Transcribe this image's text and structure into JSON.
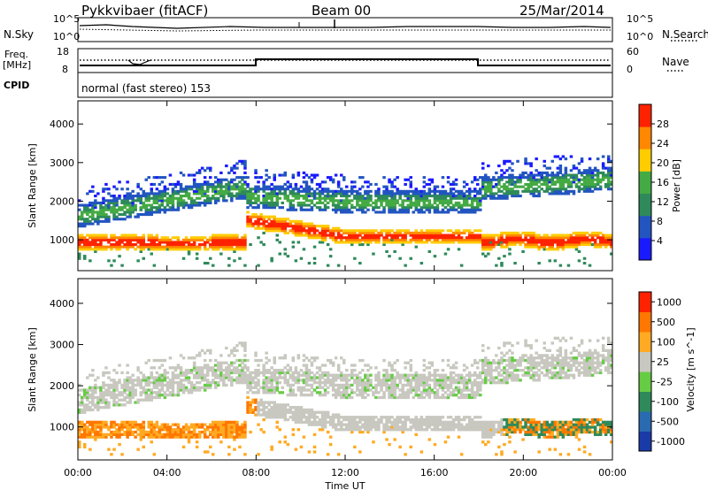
{
  "header": {
    "station": "Pykkvibaer (fitACF)",
    "beam": "Beam 00",
    "date": "25/Mar/2014"
  },
  "top_panels": {
    "nsky_label": "N.Sky",
    "nsky_ticks": [
      "10^5",
      "10^0"
    ],
    "nsearch_label": "N.Search",
    "nsearch_ticks": [
      "10^5",
      "10^0"
    ],
    "freq_label_line1": "Freq.",
    "freq_label_line2": "[MHz]",
    "freq_ticks": [
      "18",
      "8"
    ],
    "nave_label": "Nave",
    "nave_ticks": [
      "60",
      "0"
    ],
    "cpid_label": "CPID",
    "cpid_text": "normal (fast stereo) 153"
  },
  "chart_data": [
    {
      "type": "heatmap",
      "name": "power",
      "ylabel": "Slant Range [km]",
      "yticks": [
        "1000",
        "2000",
        "3000",
        "4000"
      ],
      "ylim": [
        200,
        4600
      ],
      "xlim": [
        0,
        24
      ],
      "colorbar_label": "Power [dB]",
      "colorbar_ticks": [
        "4",
        "8",
        "12",
        "16",
        "20",
        "24",
        "28"
      ],
      "colorbar_colors": [
        "#1a1aff",
        "#2255c0",
        "#2e8a5a",
        "#44aa44",
        "#ffcc00",
        "#ff8800",
        "#ff2200"
      ]
    },
    {
      "type": "heatmap",
      "name": "velocity",
      "ylabel": "Slant Range [km]",
      "yticks": [
        "1000",
        "2000",
        "3000",
        "4000"
      ],
      "ylim": [
        200,
        4600
      ],
      "xlim": [
        0,
        24
      ],
      "colorbar_label": "Velocity [m s^-1]",
      "colorbar_ticks": [
        "1000",
        "500",
        "100",
        "25",
        "-25",
        "-100",
        "-500",
        "-1000"
      ],
      "colorbar_colors": [
        "#1a3aa8",
        "#2a6ab0",
        "#2e8a5a",
        "#66cc44",
        "#c8c8c0",
        "#ffaa22",
        "#ff7700",
        "#ff2200"
      ]
    }
  ],
  "x_axis": {
    "ticks": [
      "00:00",
      "04:00",
      "08:00",
      "12:00",
      "16:00",
      "20:00",
      "00:00"
    ],
    "label": "Time UT"
  }
}
